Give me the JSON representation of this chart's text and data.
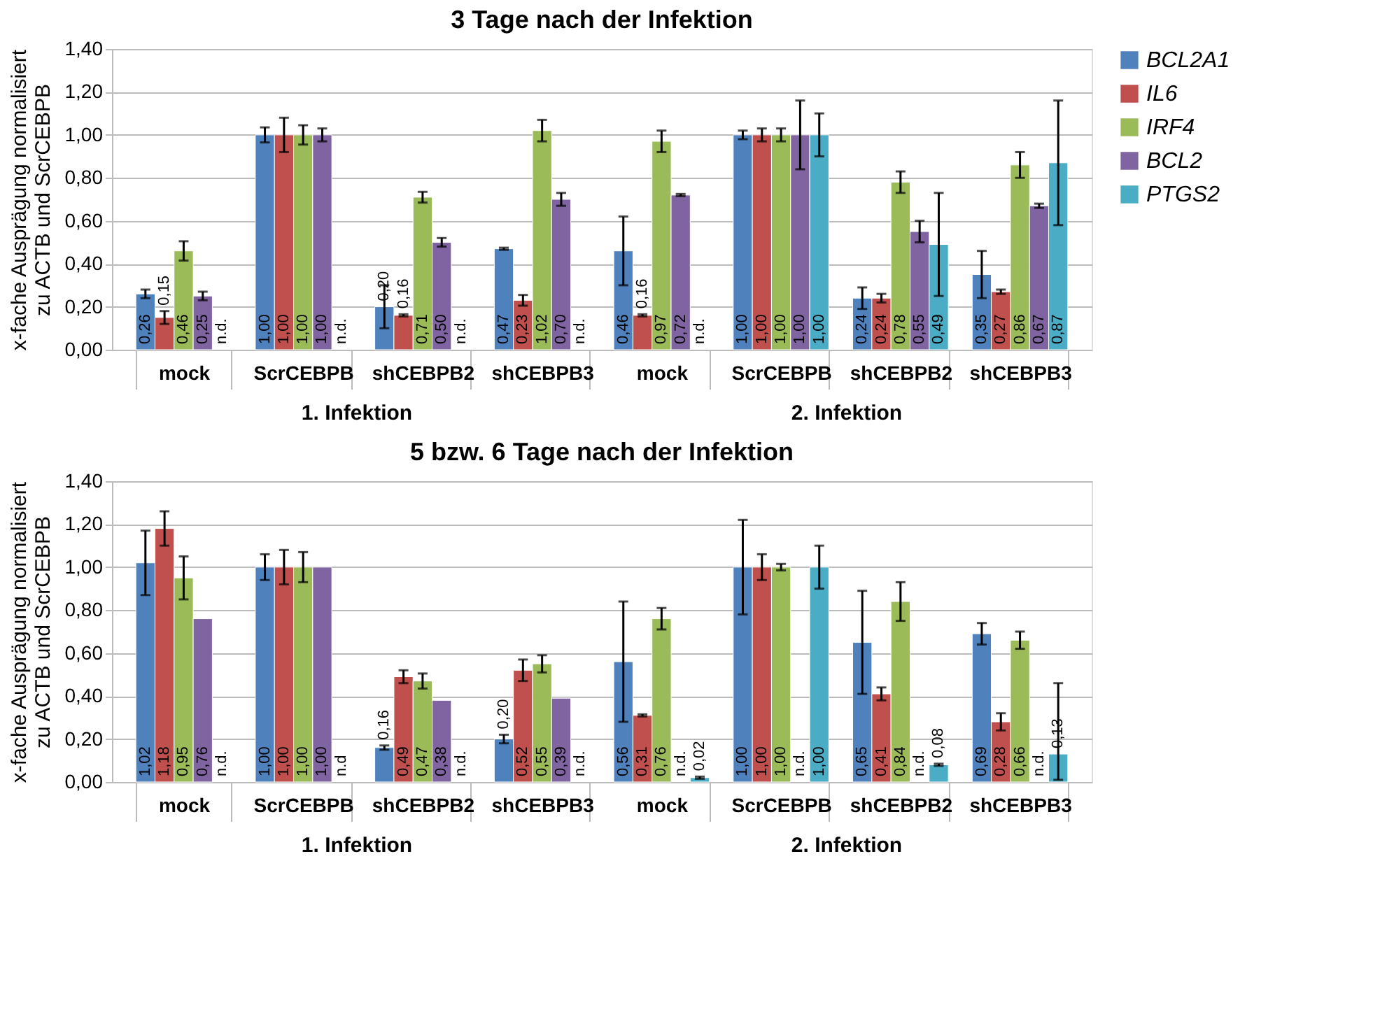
{
  "chart_data": [
    {
      "type": "bar",
      "title": "3 Tage nach der Infektion",
      "ylabel": "x-fache Ausprägung normalisiert\nzu ACTB und ScrCEBPB",
      "categories": [
        "mock",
        "ScrCEBPB",
        "shCEBPB2",
        "shCEBPB3",
        "mock",
        "ScrCEBPB",
        "shCEBPB2",
        "shCEBPB3"
      ],
      "annotations": [
        "1. Infektion",
        "2. Infektion"
      ],
      "ylim": [
        0,
        1.4
      ],
      "yticks": [
        {
          "value": 0,
          "label": "0,00"
        },
        {
          "value": 0.2,
          "label": "0,20"
        },
        {
          "value": 0.4,
          "label": "0,40"
        },
        {
          "value": 0.6,
          "label": "0,60"
        },
        {
          "value": 0.8,
          "label": "0,80"
        },
        {
          "value": 1.0,
          "label": "1,00"
        },
        {
          "value": 1.2,
          "label": "1,20"
        },
        {
          "value": 1.4,
          "label": "1,40"
        }
      ],
      "grid": "y",
      "legend": "right",
      "series": [
        {
          "name": "BCL2A1",
          "color": "#4f81bd",
          "values": [
            0.26,
            1.0,
            0.2,
            0.47,
            0.46,
            1.0,
            0.24,
            0.35
          ],
          "errors": [
            0.02,
            0.035,
            0.1,
            0.005,
            0.16,
            0.02,
            0.05,
            0.11
          ],
          "value_labels": [
            "0,26",
            "1,00",
            "0,20",
            "0,47",
            "0,46",
            "1,00",
            "0,24",
            "0,35"
          ]
        },
        {
          "name": "IL6",
          "color": "#c0504d",
          "values": [
            0.15,
            1.0,
            0.16,
            0.23,
            0.16,
            1.0,
            0.24,
            0.27
          ],
          "errors": [
            0.03,
            0.08,
            0.005,
            0.025,
            0.005,
            0.03,
            0.02,
            0.01
          ],
          "value_labels": [
            "0,15",
            "1,00",
            "0,16",
            "0,23",
            "0,16",
            "1,00",
            "0,24",
            "0,27"
          ]
        },
        {
          "name": "IRF4",
          "color": "#9bbb59",
          "values": [
            0.46,
            1.0,
            0.71,
            1.02,
            0.97,
            1.0,
            0.78,
            0.86
          ],
          "errors": [
            0.045,
            0.045,
            0.025,
            0.05,
            0.05,
            0.03,
            0.05,
            0.06
          ],
          "value_labels": [
            "0,46",
            "1,00",
            "0,71",
            "1,02",
            "0,97",
            "1,00",
            "0,78",
            "0,86"
          ]
        },
        {
          "name": "BCL2",
          "color": "#8064a2",
          "values": [
            0.25,
            1.0,
            0.5,
            0.7,
            0.72,
            1.0,
            0.55,
            0.67
          ],
          "errors": [
            0.02,
            0.03,
            0.02,
            0.03,
            0.005,
            0.16,
            0.05,
            0.01
          ],
          "value_labels": [
            "0,25",
            "1,00",
            "0,50",
            "0,70",
            "0,72",
            "1,00",
            "0,55",
            "0,67"
          ]
        },
        {
          "name": "PTGS2",
          "color": "#4bacc6",
          "values": [
            null,
            null,
            null,
            null,
            null,
            1.0,
            0.49,
            0.87
          ],
          "errors": [
            null,
            null,
            null,
            null,
            null,
            0.1,
            0.24,
            0.29
          ],
          "value_labels": [
            "n.d.",
            "n.d.",
            "n.d.",
            "n.d.",
            "n.d.",
            "1,00",
            "0,49",
            "0,87"
          ]
        }
      ]
    },
    {
      "type": "bar",
      "title": "5 bzw. 6 Tage nach der Infektion",
      "ylabel": "x-fache Ausprägung normalisiert\nzu ACTB und ScrCEBPB",
      "categories": [
        "mock",
        "ScrCEBPB",
        "shCEBPB2",
        "shCEBPB3",
        "mock",
        "ScrCEBPB",
        "shCEBPB2",
        "shCEBPB3"
      ],
      "annotations": [
        "1. Infektion",
        "2. Infektion"
      ],
      "ylim": [
        0,
        1.4
      ],
      "yticks": [
        {
          "value": 0,
          "label": "0,00"
        },
        {
          "value": 0.2,
          "label": "0,20"
        },
        {
          "value": 0.4,
          "label": "0,40"
        },
        {
          "value": 0.6,
          "label": "0,60"
        },
        {
          "value": 0.8,
          "label": "0,80"
        },
        {
          "value": 1.0,
          "label": "1,00"
        },
        {
          "value": 1.2,
          "label": "1,20"
        },
        {
          "value": 1.4,
          "label": "1,40"
        }
      ],
      "grid": "y",
      "legend": "right",
      "series": [
        {
          "name": "BCL2A1",
          "color": "#4f81bd",
          "values": [
            1.02,
            1.0,
            0.16,
            0.2,
            0.56,
            1.0,
            0.65,
            0.69
          ],
          "errors": [
            0.15,
            0.06,
            0.01,
            0.02,
            0.28,
            0.22,
            0.24,
            0.05
          ],
          "value_labels": [
            "1,02",
            "1,00",
            "0,16",
            "0,20",
            "0,56",
            "1,00",
            "0,65",
            "0,69"
          ]
        },
        {
          "name": "IL6",
          "color": "#c0504d",
          "values": [
            1.18,
            1.0,
            0.49,
            0.52,
            0.31,
            1.0,
            0.41,
            0.28
          ],
          "errors": [
            0.08,
            0.08,
            0.03,
            0.05,
            0.005,
            0.06,
            0.03,
            0.04
          ],
          "value_labels": [
            "1,18",
            "1,00",
            "0,49",
            "0,52",
            "0,31",
            "1,00",
            "0,41",
            "0,28"
          ]
        },
        {
          "name": "IRF4",
          "color": "#9bbb59",
          "values": [
            0.95,
            1.0,
            0.47,
            0.55,
            0.76,
            1.0,
            0.84,
            0.66
          ],
          "errors": [
            0.1,
            0.07,
            0.035,
            0.04,
            0.05,
            0.015,
            0.09,
            0.04
          ],
          "value_labels": [
            "0,95",
            "1,00",
            "0,47",
            "0,55",
            "0,76",
            "1,00",
            "0,84",
            "0,66"
          ]
        },
        {
          "name": "BCL2",
          "color": "#8064a2",
          "values": [
            0.76,
            1.0,
            0.38,
            0.39,
            null,
            null,
            null,
            null
          ],
          "value_labels": [
            "0,76",
            "1,00",
            "0,38",
            "0,39",
            "n.d.",
            "n.d.",
            "n.d.",
            "n.d."
          ]
        },
        {
          "name": "PTGS2",
          "color": "#4bacc6",
          "values": [
            null,
            null,
            null,
            null,
            0.02,
            1.0,
            0.08,
            0.13
          ],
          "errors": [
            null,
            null,
            null,
            null,
            0.005,
            0.1,
            0.005,
            [
              0.01,
              0.46
            ]
          ],
          "value_labels": [
            "n.d.",
            "n.d",
            "n.d.",
            "n.d.",
            "0,02",
            "1,00",
            "0,08",
            "0,13"
          ]
        }
      ]
    }
  ]
}
